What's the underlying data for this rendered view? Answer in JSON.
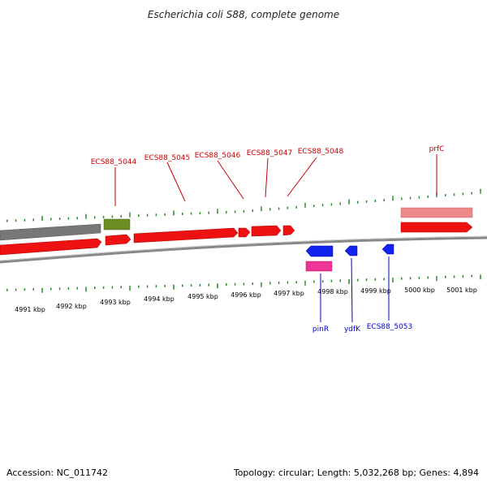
{
  "title": "Escherichia coli S88, complete genome",
  "footer": {
    "accession": "Accession: NC_011742",
    "summary": "Topology: circular; Length: 5,032,268 bp; Genes: 4,894"
  },
  "colors": {
    "tick": "#2a8a2a",
    "label_red": "#cc0000",
    "label_blue": "#0000cc",
    "gene_red": "#ee1111",
    "gene_blue": "#1122ee",
    "gene_pink": "#ee3399",
    "gene_salmon": "#ee8888",
    "gene_olive": "#6b8e23",
    "gene_gray": "#777777",
    "backbone": "#888888"
  },
  "kbp_labels": [
    "4991 kbp",
    "4992 kbp",
    "4993 kbp",
    "4994 kbp",
    "4995 kbp",
    "4996 kbp",
    "4997 kbp",
    "4998 kbp",
    "4999 kbp",
    "5000 kbp",
    "5001 kbp"
  ],
  "gene_labels": [
    {
      "id": "lbl-ecs88-5044",
      "text": "ECS88_5044",
      "color": "red"
    },
    {
      "id": "lbl-ecs88-5045",
      "text": "ECS88_5045",
      "color": "red"
    },
    {
      "id": "lbl-ecs88-5046",
      "text": "ECS88_5046",
      "color": "red"
    },
    {
      "id": "lbl-ecs88-5047",
      "text": "ECS88_5047",
      "color": "red"
    },
    {
      "id": "lbl-ecs88-5048",
      "text": "ECS88_5048",
      "color": "red"
    },
    {
      "id": "lbl-prfc",
      "text": "prfC",
      "color": "red"
    },
    {
      "id": "lbl-pinr",
      "text": "pinR",
      "color": "blue"
    },
    {
      "id": "lbl-ydfk",
      "text": "ydfK",
      "color": "blue"
    },
    {
      "id": "lbl-ecs88-5053",
      "text": "ECS88_5053",
      "color": "blue"
    }
  ]
}
